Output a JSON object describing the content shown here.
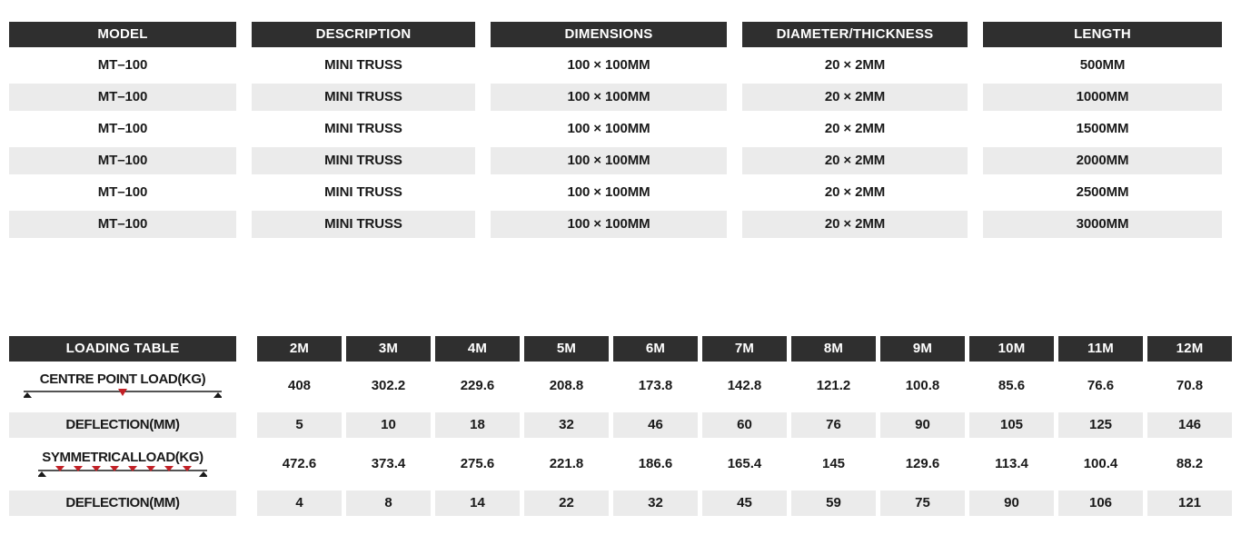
{
  "colors": {
    "header_bg": "#2f2f2f",
    "header_text": "#ffffff",
    "row_shaded": "#ebebeb",
    "text": "#191919",
    "accent_red": "#c22026",
    "diagram_black": "#1a1a1a"
  },
  "spec_table": {
    "headers": [
      "MODEL",
      "DESCRIPTION",
      "DIMENSIONS",
      "DIAMETER/THICKNESS",
      "LENGTH"
    ],
    "rows": [
      [
        "MT–100",
        "MINI TRUSS",
        "100 × 100MM",
        "20 × 2MM",
        "500MM"
      ],
      [
        "MT–100",
        "MINI TRUSS",
        "100 × 100MM",
        "20 × 2MM",
        "1000MM"
      ],
      [
        "MT–100",
        "MINI TRUSS",
        "100 × 100MM",
        "20 × 2MM",
        "1500MM"
      ],
      [
        "MT–100",
        "MINI TRUSS",
        "100 × 100MM",
        "20 × 2MM",
        "2000MM"
      ],
      [
        "MT–100",
        "MINI TRUSS",
        "100 × 100MM",
        "20 × 2MM",
        "2500MM"
      ],
      [
        "MT–100",
        "MINI TRUSS",
        "100 × 100MM",
        "20 × 2MM",
        "3000MM"
      ]
    ]
  },
  "loading_table": {
    "title": "LOADING TABLE",
    "span_headers": [
      "2M",
      "3M",
      "4M",
      "5M",
      "6M",
      "7M",
      "8M",
      "9M",
      "10M",
      "11M",
      "12M"
    ],
    "rows": [
      {
        "label": "CENTRE POINT LOAD(KG)",
        "diagram": "centre-point-load",
        "shaded": false,
        "values": [
          "408",
          "302.2",
          "229.6",
          "208.8",
          "173.8",
          "142.8",
          "121.2",
          "100.8",
          "85.6",
          "76.6",
          "70.8"
        ]
      },
      {
        "label": "DEFLECTION(MM)",
        "diagram": null,
        "shaded": true,
        "values": [
          "5",
          "10",
          "18",
          "32",
          "46",
          "60",
          "76",
          "90",
          "105",
          "125",
          "146"
        ]
      },
      {
        "label": "SYMMETRICALLOAD(KG)",
        "diagram": "symmetrical-load",
        "shaded": false,
        "values": [
          "472.6",
          "373.4",
          "275.6",
          "221.8",
          "186.6",
          "165.4",
          "145",
          "129.6",
          "113.4",
          "100.4",
          "88.2"
        ]
      },
      {
        "label": "DEFLECTION(MM)",
        "diagram": null,
        "shaded": true,
        "values": [
          "4",
          "8",
          "14",
          "22",
          "32",
          "45",
          "59",
          "75",
          "90",
          "106",
          "121"
        ]
      }
    ]
  }
}
